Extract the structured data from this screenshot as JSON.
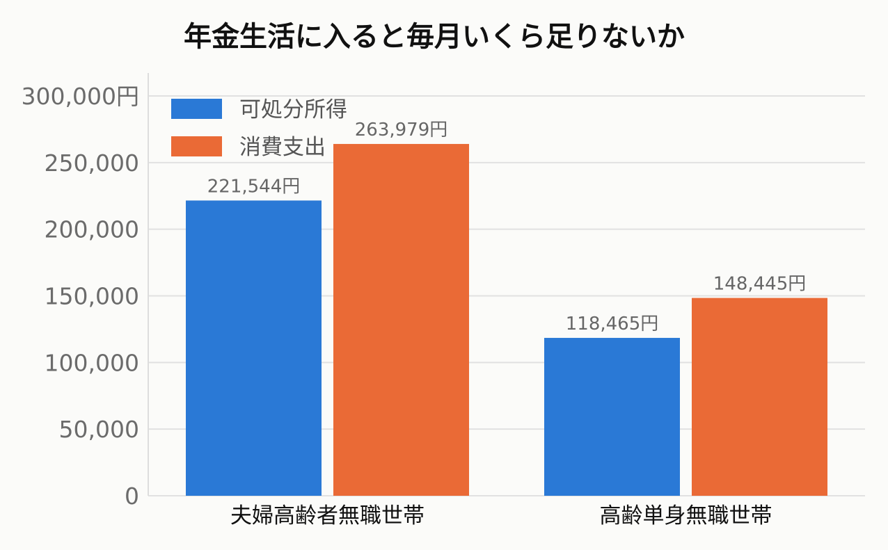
{
  "chart_data": {
    "type": "bar",
    "title": "年金生活に入ると毎月いくら足りないか",
    "xlabel": "",
    "ylabel": "",
    "categories": [
      "夫婦高齢者無職世帯",
      "高齢単身無職世帯"
    ],
    "series": [
      {
        "name": "可処分所得",
        "color": "#2a79d6",
        "values": [
          221544,
          118465
        ],
        "labels": [
          "221,544円",
          "118,465円"
        ]
      },
      {
        "name": "消費支出",
        "color": "#ea6a36",
        "values": [
          263979,
          148445
        ],
        "labels": [
          "263,979円",
          "148,445円"
        ]
      }
    ],
    "ylim": [
      0,
      300000
    ],
    "yticks": [
      0,
      50000,
      100000,
      150000,
      200000,
      250000,
      300000
    ],
    "ytick_labels": [
      "0",
      "50,000",
      "100,000",
      "150,000",
      "200,000",
      "250,000",
      "300,000円"
    ],
    "grid": true,
    "legend": "top-left"
  }
}
